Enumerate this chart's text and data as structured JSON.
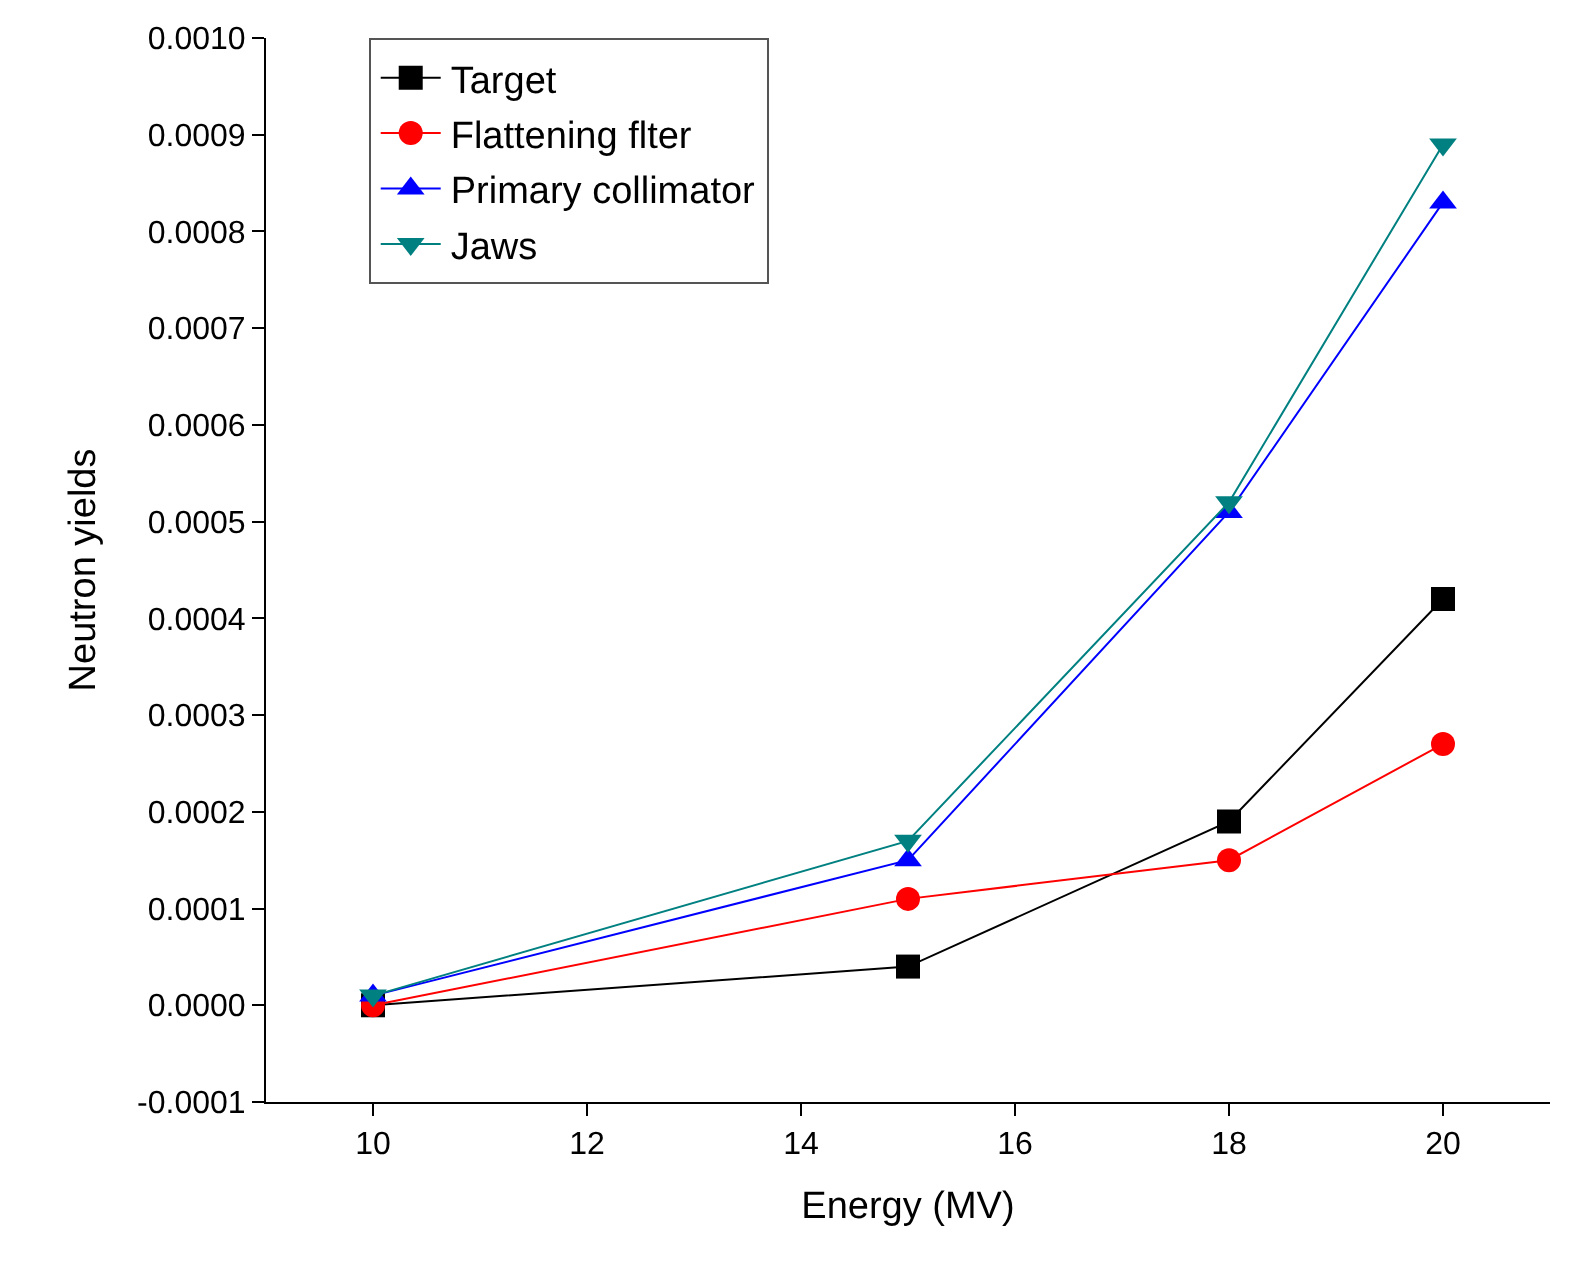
{
  "chart_data": {
    "type": "line",
    "xlabel": "Energy (MV)",
    "ylabel": "Neutron yields",
    "x": [
      10,
      15,
      18,
      20
    ],
    "series": [
      {
        "name": "Target",
        "color": "#000000",
        "marker": "square",
        "values": [
          0.0,
          4e-05,
          0.00019,
          0.00042
        ]
      },
      {
        "name": "Flattening flter",
        "color": "#ff0000",
        "marker": "circle",
        "values": [
          0.0,
          0.00011,
          0.00015,
          0.00027
        ]
      },
      {
        "name": "Primary collimator",
        "color": "#0000ff",
        "marker": "triangle",
        "values": [
          1e-05,
          0.00015,
          0.00051,
          0.00083
        ]
      },
      {
        "name": "Jaws",
        "color": "#008080",
        "marker": "triangle-down",
        "values": [
          1e-05,
          0.00017,
          0.00052,
          0.00089
        ]
      }
    ],
    "xlim": [
      9,
      21
    ],
    "xticks": [
      10,
      12,
      14,
      16,
      18,
      20
    ],
    "ylim": [
      -0.0001,
      0.001
    ],
    "yticks": [
      {
        "value": -0.0001,
        "label": "-0.0001"
      },
      {
        "value": 0,
        "label": "0.0000"
      },
      {
        "value": 0.0001,
        "label": "0.0001"
      },
      {
        "value": 0.0002,
        "label": "0.0002"
      },
      {
        "value": 0.0003,
        "label": "0.0003"
      },
      {
        "value": 0.0004,
        "label": "0.0004"
      },
      {
        "value": 0.0005,
        "label": "0.0005"
      },
      {
        "value": 0.0006,
        "label": "0.0006"
      },
      {
        "value": 0.0007,
        "label": "0.0007"
      },
      {
        "value": 0.0008,
        "label": "0.0008"
      },
      {
        "value": 0.0009,
        "label": "0.0009"
      },
      {
        "value": 0.001,
        "label": "0.0010"
      }
    ],
    "legend": "top left",
    "line_style": "solid"
  }
}
